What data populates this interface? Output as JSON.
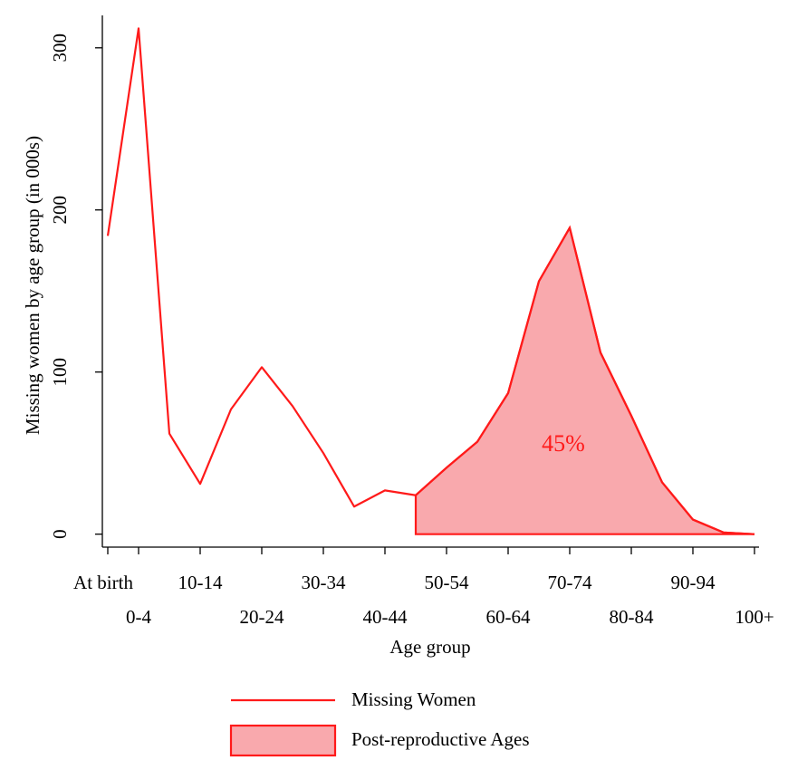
{
  "chart_data": {
    "type": "line",
    "xlabel": "Age group",
    "ylabel": "Missing women by age group (in 000s)",
    "categories": [
      "At birth",
      "0-4",
      null,
      "10-14",
      null,
      "20-24",
      null,
      "30-34",
      null,
      "40-44",
      null,
      "50-54",
      null,
      "60-64",
      null,
      "70-74",
      null,
      "80-84",
      null,
      "90-94",
      null,
      "100+"
    ],
    "series": [
      {
        "name": "Missing Women",
        "color": "#ff1a1a",
        "kind": "line",
        "values": [
          184,
          312,
          62,
          31,
          77,
          103,
          79,
          50,
          17,
          27,
          24,
          41,
          57,
          87,
          156,
          189,
          112,
          73,
          32,
          9,
          1,
          0
        ]
      },
      {
        "name": "Post-reproductive Ages",
        "color": "#ff1a1a",
        "fill": "#f9a9ad",
        "kind": "area",
        "values": [
          null,
          null,
          null,
          null,
          null,
          null,
          null,
          null,
          null,
          null,
          24,
          41,
          57,
          87,
          156,
          189,
          112,
          73,
          32,
          9,
          1,
          0
        ]
      }
    ],
    "annotation": "45%",
    "ylim": [
      -8,
      320
    ],
    "yticks": [
      0,
      100,
      200,
      300
    ]
  }
}
